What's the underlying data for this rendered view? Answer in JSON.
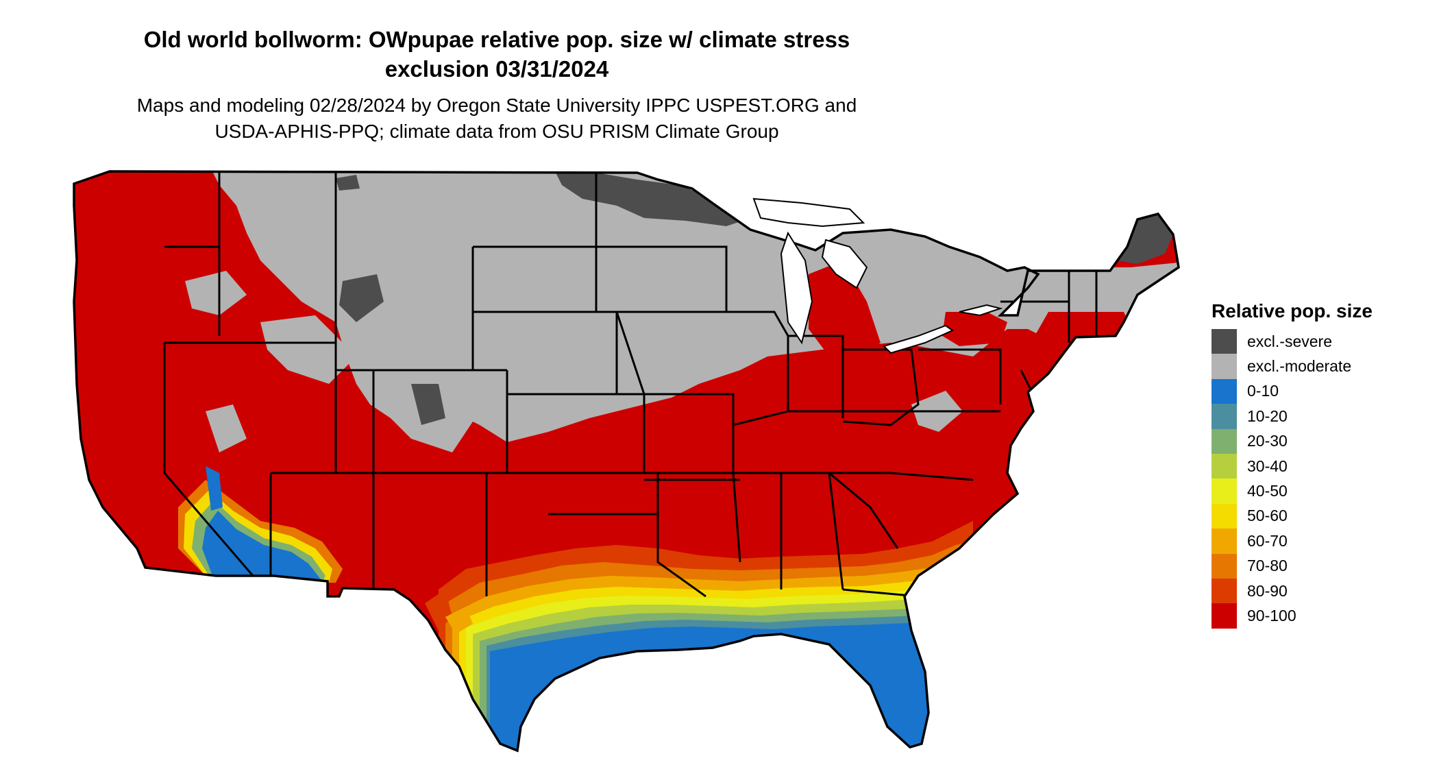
{
  "title_line1": "Old world bollworm: OWpupae relative pop. size w/ climate stress",
  "title_line2": "exclusion 03/31/2024",
  "subtitle_line1": "Maps and modeling 02/28/2024 by Oregon State University IPPC USPEST.ORG and",
  "subtitle_line2": "USDA-APHIS-PPQ; climate data from OSU PRISM Climate Group",
  "legend": {
    "title": "Relative pop. size",
    "items": [
      {
        "label": "excl.-severe",
        "color": "#4d4d4d"
      },
      {
        "label": "excl.-moderate",
        "color": "#b3b3b3"
      },
      {
        "label": "0-10",
        "color": "#1874cd"
      },
      {
        "label": "10-20",
        "color": "#4a8ea0"
      },
      {
        "label": "20-30",
        "color": "#7fb070"
      },
      {
        "label": "30-40",
        "color": "#b6cf3f"
      },
      {
        "label": "40-50",
        "color": "#e8ee1a"
      },
      {
        "label": "50-60",
        "color": "#f5dc00"
      },
      {
        "label": "60-70",
        "color": "#f0a800"
      },
      {
        "label": "70-80",
        "color": "#e67700"
      },
      {
        "label": "80-90",
        "color": "#dd3c00"
      },
      {
        "label": "90-100",
        "color": "#cd0000"
      }
    ]
  }
}
